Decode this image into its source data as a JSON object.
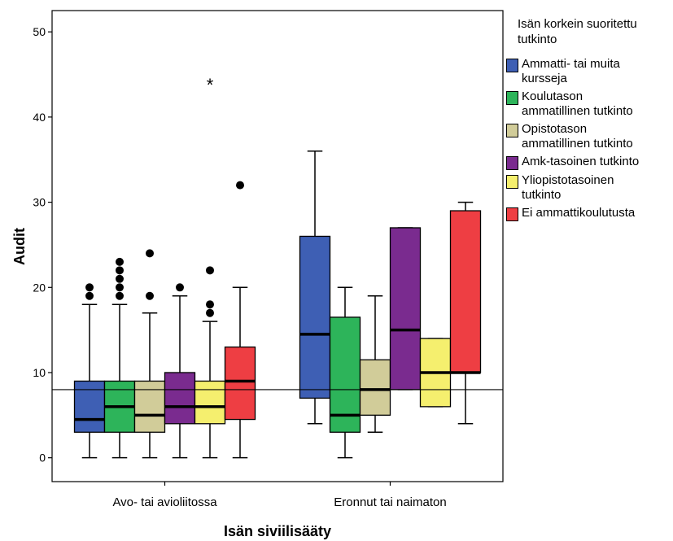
{
  "chart_data": {
    "type": "boxplot",
    "xlabel": "Isän siviilisääty",
    "ylabel": "Audit",
    "ylim": [
      -2.8,
      52.5
    ],
    "yticks": [
      "0",
      "10",
      "20",
      "30",
      "40",
      "50"
    ],
    "reference_line": 8,
    "categories": [
      "Avo- tai avioliitossa",
      "Eronnut tai naimaton"
    ],
    "legend_title": "Isän korkein suoritettu\ntutkinto",
    "series": [
      {
        "name": "Ammatti- tai muita\nkursseja",
        "color": "#3e5fb4",
        "boxes": [
          {
            "whisker_low": 0,
            "q1": 3,
            "median": 4.5,
            "q3": 9,
            "whisker_high": 18,
            "outliers": [
              19,
              20
            ],
            "extremes": []
          },
          {
            "whisker_low": 4,
            "q1": 7,
            "median": 14.5,
            "q3": 26,
            "whisker_high": 36,
            "outliers": [],
            "extremes": []
          }
        ]
      },
      {
        "name": "Koulutason\nammatillinen tutkinto",
        "color": "#2db45a",
        "boxes": [
          {
            "whisker_low": 0,
            "q1": 3,
            "median": 6,
            "q3": 9,
            "whisker_high": 18,
            "outliers": [
              19,
              20,
              21,
              22,
              23
            ],
            "extremes": []
          },
          {
            "whisker_low": 0,
            "q1": 3,
            "median": 5,
            "q3": 16.5,
            "whisker_high": 20,
            "outliers": [],
            "extremes": []
          }
        ]
      },
      {
        "name": "Opistotason\nammatillinen tutkinto",
        "color": "#d1cc99",
        "boxes": [
          {
            "whisker_low": 0,
            "q1": 3,
            "median": 5,
            "q3": 9,
            "whisker_high": 17,
            "outliers": [
              19,
              24
            ],
            "extremes": []
          },
          {
            "whisker_low": 3,
            "q1": 5,
            "median": 8,
            "q3": 11.5,
            "whisker_high": 19,
            "outliers": [],
            "extremes": []
          }
        ]
      },
      {
        "name": "Amk-tasoinen tutkinto",
        "color": "#7a2b8f",
        "boxes": [
          {
            "whisker_low": 0,
            "q1": 4,
            "median": 6,
            "q3": 10,
            "whisker_high": 19,
            "outliers": [
              20
            ],
            "extremes": []
          },
          {
            "whisker_low": 8,
            "q1": 8,
            "median": 15,
            "q3": 27,
            "whisker_high": 27,
            "outliers": [],
            "extremes": []
          }
        ]
      },
      {
        "name": "Yliopistotasoinen\ntutkinto",
        "color": "#f5ef6e",
        "boxes": [
          {
            "whisker_low": 0,
            "q1": 4,
            "median": 6,
            "q3": 9,
            "whisker_high": 16,
            "outliers": [
              17,
              18,
              22
            ],
            "extremes": [
              44
            ]
          },
          {
            "whisker_low": 6,
            "q1": 6,
            "median": 10,
            "q3": 14,
            "whisker_high": 14,
            "outliers": [],
            "extremes": []
          }
        ]
      },
      {
        "name": "Ei ammattikoulutusta",
        "color": "#ee3e43",
        "boxes": [
          {
            "whisker_low": 0,
            "q1": 4.5,
            "median": 9,
            "q3": 13,
            "whisker_high": 20,
            "outliers": [
              32
            ],
            "extremes": []
          },
          {
            "whisker_low": 4,
            "q1": 10,
            "median": 10,
            "q3": 29,
            "whisker_high": 30,
            "outliers": [],
            "extremes": []
          }
        ]
      }
    ]
  }
}
